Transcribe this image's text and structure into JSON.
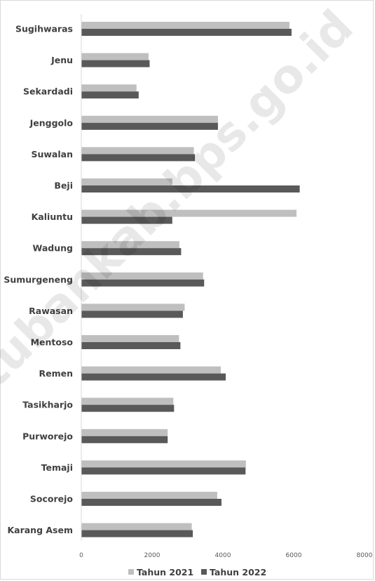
{
  "chart_data": {
    "type": "bar",
    "orientation": "horizontal",
    "categories": [
      "Sugihwaras",
      "Jenu",
      "Sekardadi",
      "Jenggolo",
      "Suwalan",
      "Beji",
      "Kaliuntu",
      "Wadung",
      "Sumurgeneng",
      "Rawasan",
      "Mentoso",
      "Remen",
      "Tasikharjo",
      "Purworejo",
      "Temaji",
      "Socorejo",
      "Karang Asem"
    ],
    "series": [
      {
        "name": "Tahun 2021",
        "color": "#bfbfbf",
        "values": [
          5880,
          1900,
          1560,
          3860,
          3180,
          2570,
          6080,
          2770,
          3440,
          2920,
          2760,
          3940,
          2600,
          2440,
          4650,
          3840,
          3120
        ]
      },
      {
        "name": "Tahun 2022",
        "color": "#595959",
        "values": [
          5940,
          1930,
          1620,
          3860,
          3210,
          6170,
          2570,
          2820,
          3470,
          2870,
          2800,
          4080,
          2620,
          2440,
          4640,
          3960,
          3150
        ]
      }
    ],
    "xlim": [
      0,
      8000
    ],
    "xticks": [
      "0",
      "2000",
      "4000",
      "6000",
      "8000"
    ],
    "legend_position": "bottom",
    "grid": false
  },
  "watermark": "tubankab.bps.go.id"
}
